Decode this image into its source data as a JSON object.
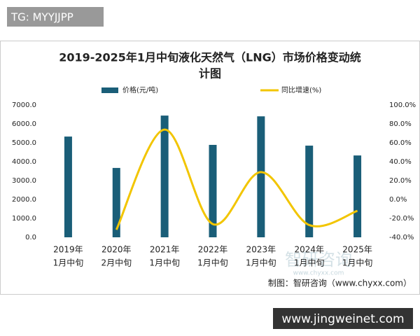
{
  "chart_data": {
    "type": "bar-line",
    "title": [
      "2019-2025年1月中旬液化天然气（LNG）市场价格变动统",
      "计图"
    ],
    "categories": [
      [
        "2019年",
        "1月中旬"
      ],
      [
        "2020年",
        "2月中旬"
      ],
      [
        "2021年",
        "1月中旬"
      ],
      [
        "2022年",
        "1月中旬"
      ],
      [
        "2023年",
        "1月中旬"
      ],
      [
        "2024年",
        "1月中旬"
      ],
      [
        "2025年",
        "1月中旬"
      ]
    ],
    "series": [
      {
        "name": "价格(元/吨)",
        "type": "bar",
        "color": "#1a5e78",
        "values": [
          5330,
          3670,
          6440,
          4890,
          6400,
          4850,
          4330
        ]
      },
      {
        "name": "同比增速(%)",
        "type": "line",
        "axis": "y2",
        "color": "#f2c500",
        "values": [
          null,
          -32,
          74,
          -26,
          29,
          -27,
          -12
        ]
      }
    ],
    "ylim": [
      0,
      7000
    ],
    "yticks": [
      {
        "value": 0,
        "label": "0.0"
      },
      {
        "value": 1000,
        "label": "1000.0"
      },
      {
        "value": 2000,
        "label": "2000.0"
      },
      {
        "value": 3000,
        "label": "3000.0"
      },
      {
        "value": 4000,
        "label": "4000.0"
      },
      {
        "value": 5000,
        "label": "5000.0"
      },
      {
        "value": 6000,
        "label": "6000.0"
      },
      {
        "value": 7000,
        "label": "7000.0"
      }
    ],
    "y2lim": [
      -40,
      100
    ],
    "y2ticks": [
      {
        "value": -40,
        "label": "-40.0%"
      },
      {
        "value": -20,
        "label": "-20.0%"
      },
      {
        "value": 0,
        "label": "0.0%"
      },
      {
        "value": 20,
        "label": "20.0%"
      },
      {
        "value": 40,
        "label": "40.0%"
      },
      {
        "value": 60,
        "label": "60.0%"
      },
      {
        "value": 80,
        "label": "80.0%"
      },
      {
        "value": 100,
        "label": "100.0%"
      }
    ],
    "grid": false,
    "source": "制图：智研咨询（www.chyxx.com）"
  },
  "watermarks": {
    "top_left": "TG: MYYJJPP",
    "bottom_right": "www.jingweinet.com",
    "logo": "智研咨询",
    "logo_url": "www.chyxx.com"
  }
}
